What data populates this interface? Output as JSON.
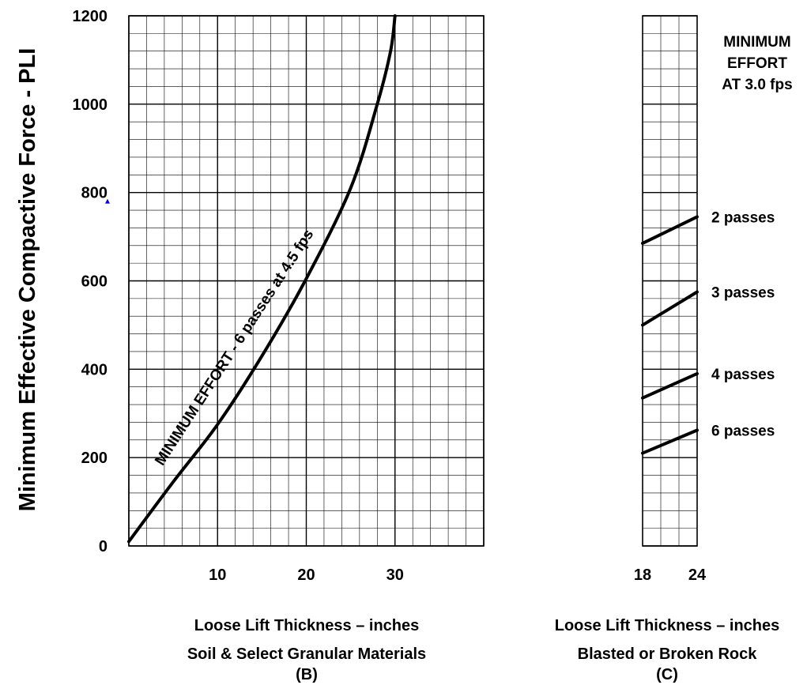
{
  "y_axis_title": "Minimum Effective Compactive Force - PLI",
  "panel_b": {
    "x_label": "Loose Lift Thickness – inches",
    "subtitle": "Soil & Select Granular Materials",
    "panel_id": "(B)",
    "curve_label": "MINIMUM EFFORT - 6 passes at 4.5 fps"
  },
  "panel_c": {
    "x_label": "Loose Lift Thickness – inches",
    "subtitle": "Blasted or Broken Rock",
    "panel_id": "(C)",
    "note_lines": [
      "MINIMUM",
      "EFFORT",
      "AT 3.0 fps"
    ]
  },
  "colors": {
    "highlight_tick": "#0000ee",
    "line": "#000000",
    "grid": "#000000"
  },
  "chart_data": [
    {
      "type": "line",
      "panel": "B",
      "xlim": [
        0,
        40
      ],
      "ylim": [
        0,
        1200
      ],
      "xticks": [
        "10",
        "20",
        "30"
      ],
      "xtick_values": [
        10,
        20,
        30
      ],
      "yticks": [
        "0",
        "200",
        "400",
        "600",
        "800",
        "1000",
        "1200"
      ],
      "ytick_values": [
        0,
        200,
        400,
        600,
        800,
        1000,
        1200
      ],
      "highlighted_ytick": "800",
      "grid": true,
      "series": [
        {
          "name": "MINIMUM EFFORT - 6 passes at 4.5 fps",
          "x": [
            0,
            5,
            10,
            15,
            20,
            25,
            28,
            29.5,
            30
          ],
          "y": [
            10,
            145,
            275,
            430,
            605,
            810,
            1000,
            1120,
            1200
          ]
        }
      ]
    },
    {
      "type": "line",
      "panel": "C",
      "xlim": [
        18,
        24
      ],
      "ylim": [
        0,
        1200
      ],
      "xticks": [
        "18",
        "24"
      ],
      "xtick_values": [
        18,
        24
      ],
      "grid": true,
      "series": [
        {
          "name": "2 passes",
          "x": [
            18,
            24
          ],
          "y": [
            685,
            745
          ]
        },
        {
          "name": "3 passes",
          "x": [
            18,
            24
          ],
          "y": [
            500,
            575
          ]
        },
        {
          "name": "4 passes",
          "x": [
            18,
            24
          ],
          "y": [
            335,
            390
          ]
        },
        {
          "name": "6 passes",
          "x": [
            18,
            24
          ],
          "y": [
            210,
            262
          ]
        }
      ]
    }
  ]
}
